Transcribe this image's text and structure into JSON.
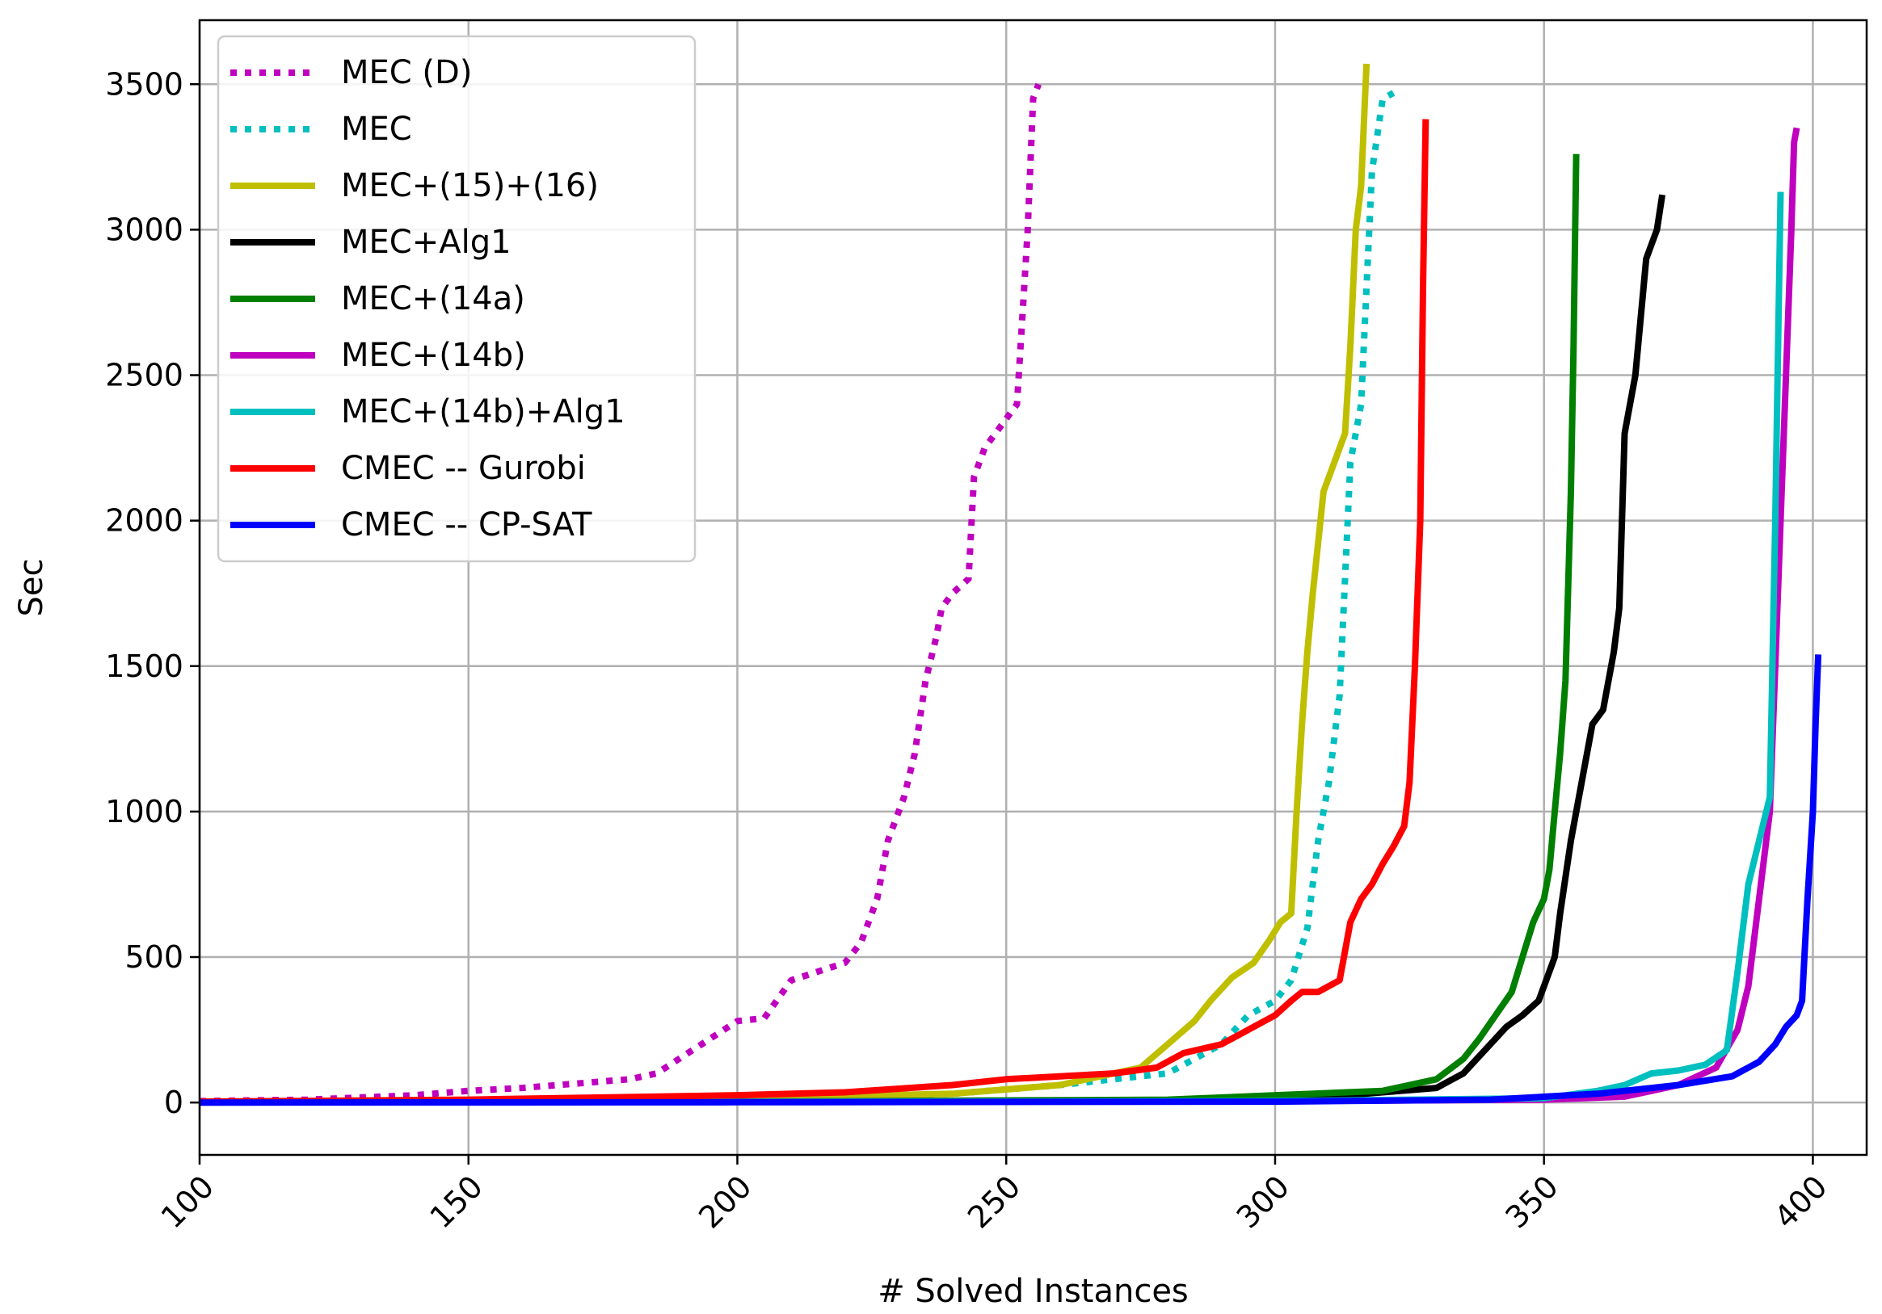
{
  "chart_data": {
    "type": "line",
    "xlabel": "# Solved Instances",
    "ylabel": "Sec",
    "xlim": [
      100,
      410
    ],
    "ylim": [
      -180,
      3720
    ],
    "xticks": [
      100,
      150,
      200,
      250,
      300,
      350,
      400
    ],
    "yticks": [
      0,
      500,
      1000,
      1500,
      2000,
      2500,
      3000,
      3500
    ],
    "grid": true,
    "legend_position": "top-left",
    "series": [
      {
        "name": "MEC (D)",
        "color": "#bf00bf",
        "style": "dotted",
        "points": [
          [
            100,
            5
          ],
          [
            120,
            10
          ],
          [
            140,
            25
          ],
          [
            150,
            40
          ],
          [
            160,
            50
          ],
          [
            170,
            65
          ],
          [
            180,
            80
          ],
          [
            185,
            100
          ],
          [
            190,
            160
          ],
          [
            195,
            220
          ],
          [
            200,
            280
          ],
          [
            205,
            290
          ],
          [
            210,
            420
          ],
          [
            215,
            450
          ],
          [
            220,
            480
          ],
          [
            223,
            550
          ],
          [
            226,
            700
          ],
          [
            228,
            900
          ],
          [
            231,
            1050
          ],
          [
            233,
            1200
          ],
          [
            235,
            1450
          ],
          [
            237,
            1600
          ],
          [
            238,
            1700
          ],
          [
            240,
            1750
          ],
          [
            243,
            1800
          ],
          [
            244,
            2150
          ],
          [
            246,
            2250
          ],
          [
            248,
            2300
          ],
          [
            250,
            2350
          ],
          [
            252,
            2400
          ],
          [
            253,
            2700
          ],
          [
            254,
            3000
          ],
          [
            255,
            3450
          ],
          [
            256,
            3500
          ]
        ]
      },
      {
        "name": "MEC",
        "color": "#00bfbf",
        "style": "dotted",
        "points": [
          [
            100,
            2
          ],
          [
            150,
            5
          ],
          [
            200,
            10
          ],
          [
            240,
            30
          ],
          [
            260,
            60
          ],
          [
            280,
            100
          ],
          [
            290,
            200
          ],
          [
            295,
            300
          ],
          [
            300,
            350
          ],
          [
            303,
            420
          ],
          [
            306,
            600
          ],
          [
            308,
            900
          ],
          [
            310,
            1100
          ],
          [
            312,
            1400
          ],
          [
            313,
            1800
          ],
          [
            314,
            2200
          ],
          [
            316,
            2400
          ],
          [
            317,
            2800
          ],
          [
            318,
            3200
          ],
          [
            320,
            3450
          ],
          [
            322,
            3470
          ]
        ]
      },
      {
        "name": "MEC+(15)+(16)",
        "color": "#bfbf00",
        "style": "solid",
        "points": [
          [
            100,
            2
          ],
          [
            150,
            5
          ],
          [
            200,
            15
          ],
          [
            240,
            30
          ],
          [
            260,
            60
          ],
          [
            275,
            120
          ],
          [
            280,
            200
          ],
          [
            285,
            280
          ],
          [
            288,
            350
          ],
          [
            292,
            430
          ],
          [
            296,
            480
          ],
          [
            299,
            560
          ],
          [
            301,
            620
          ],
          [
            303,
            650
          ],
          [
            304,
            1000
          ],
          [
            305,
            1300
          ],
          [
            306,
            1550
          ],
          [
            307,
            1750
          ],
          [
            309,
            2100
          ],
          [
            311,
            2200
          ],
          [
            313,
            2300
          ],
          [
            314,
            2600
          ],
          [
            315,
            3000
          ],
          [
            316,
            3150
          ],
          [
            317,
            3570
          ]
        ]
      },
      {
        "name": "MEC+Alg1",
        "color": "#000000",
        "style": "solid",
        "points": [
          [
            100,
            1
          ],
          [
            200,
            3
          ],
          [
            280,
            8
          ],
          [
            310,
            20
          ],
          [
            330,
            50
          ],
          [
            335,
            100
          ],
          [
            340,
            200
          ],
          [
            343,
            260
          ],
          [
            346,
            300
          ],
          [
            349,
            350
          ],
          [
            350,
            400
          ],
          [
            352,
            500
          ],
          [
            353,
            650
          ],
          [
            355,
            900
          ],
          [
            357,
            1100
          ],
          [
            359,
            1300
          ],
          [
            361,
            1350
          ],
          [
            363,
            1550
          ],
          [
            364,
            1700
          ],
          [
            365,
            2300
          ],
          [
            367,
            2500
          ],
          [
            369,
            2900
          ],
          [
            371,
            3000
          ],
          [
            372,
            3120
          ]
        ]
      },
      {
        "name": "MEC+(14a)",
        "color": "#007f00",
        "style": "solid",
        "points": [
          [
            100,
            1
          ],
          [
            200,
            3
          ],
          [
            280,
            10
          ],
          [
            320,
            40
          ],
          [
            330,
            80
          ],
          [
            335,
            150
          ],
          [
            338,
            220
          ],
          [
            341,
            300
          ],
          [
            344,
            380
          ],
          [
            346,
            500
          ],
          [
            348,
            620
          ],
          [
            350,
            700
          ],
          [
            351,
            800
          ],
          [
            352,
            1000
          ],
          [
            353,
            1200
          ],
          [
            354,
            1450
          ],
          [
            355,
            2100
          ],
          [
            355.5,
            2600
          ],
          [
            356,
            3260
          ]
        ]
      },
      {
        "name": "MEC+(14b)",
        "color": "#bf00bf",
        "style": "solid",
        "points": [
          [
            100,
            1
          ],
          [
            200,
            2
          ],
          [
            300,
            5
          ],
          [
            350,
            10
          ],
          [
            365,
            20
          ],
          [
            375,
            60
          ],
          [
            382,
            120
          ],
          [
            386,
            250
          ],
          [
            388,
            400
          ],
          [
            390,
            700
          ],
          [
            392,
            1000
          ],
          [
            393,
            1500
          ],
          [
            394,
            2000
          ],
          [
            395,
            2500
          ],
          [
            396,
            3000
          ],
          [
            396.5,
            3300
          ],
          [
            397,
            3350
          ]
        ]
      },
      {
        "name": "MEC+(14b)+Alg1",
        "color": "#00bfbf",
        "style": "solid",
        "points": [
          [
            100,
            1
          ],
          [
            200,
            2
          ],
          [
            300,
            5
          ],
          [
            350,
            15
          ],
          [
            360,
            40
          ],
          [
            365,
            60
          ],
          [
            370,
            100
          ],
          [
            375,
            110
          ],
          [
            380,
            130
          ],
          [
            384,
            180
          ],
          [
            386,
            450
          ],
          [
            388,
            750
          ],
          [
            390,
            900
          ],
          [
            392,
            1050
          ],
          [
            393,
            2000
          ],
          [
            394,
            3130
          ]
        ]
      },
      {
        "name": "CMEC -- Gurobi",
        "color": "#ff0000",
        "style": "solid",
        "points": [
          [
            100,
            3
          ],
          [
            150,
            10
          ],
          [
            200,
            25
          ],
          [
            220,
            35
          ],
          [
            240,
            60
          ],
          [
            250,
            80
          ],
          [
            270,
            100
          ],
          [
            278,
            120
          ],
          [
            283,
            170
          ],
          [
            290,
            200
          ],
          [
            295,
            250
          ],
          [
            300,
            300
          ],
          [
            303,
            350
          ],
          [
            305,
            380
          ],
          [
            308,
            380
          ],
          [
            312,
            420
          ],
          [
            314,
            620
          ],
          [
            316,
            700
          ],
          [
            318,
            750
          ],
          [
            320,
            820
          ],
          [
            322,
            880
          ],
          [
            324,
            950
          ],
          [
            325,
            1100
          ],
          [
            326,
            1500
          ],
          [
            327,
            2000
          ],
          [
            327.5,
            2800
          ],
          [
            328,
            3380
          ]
        ]
      },
      {
        "name": "CMEC -- CP-SAT",
        "color": "#0000ff",
        "style": "solid",
        "points": [
          [
            100,
            0
          ],
          [
            200,
            1
          ],
          [
            300,
            3
          ],
          [
            340,
            10
          ],
          [
            360,
            30
          ],
          [
            375,
            60
          ],
          [
            385,
            90
          ],
          [
            390,
            140
          ],
          [
            393,
            200
          ],
          [
            395,
            260
          ],
          [
            397,
            300
          ],
          [
            398,
            350
          ],
          [
            399,
            700
          ],
          [
            400,
            1000
          ],
          [
            400.5,
            1300
          ],
          [
            401,
            1540
          ]
        ]
      }
    ]
  }
}
